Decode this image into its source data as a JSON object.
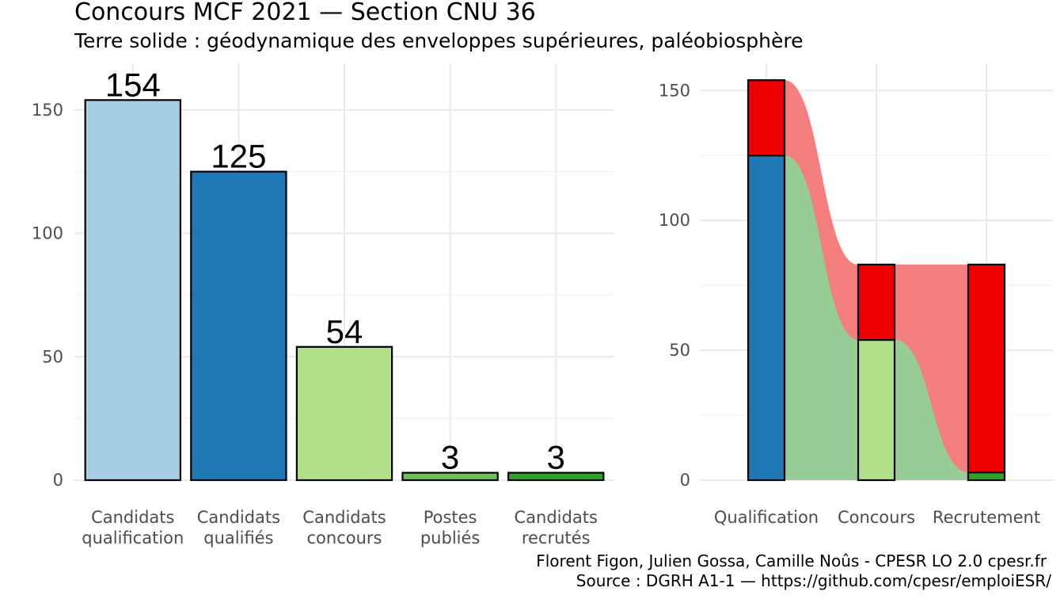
{
  "title": "Concours MCF  2021  —  Section CNU 36",
  "subtitle": "Terre solide : géodynamique des enveloppes supérieures, paléobiosphère",
  "caption": {
    "line1": "Florent Figon, Julien Gossa, Camille Noûs - CPESR LO 2.0 cpesr.fr",
    "line2": "Source : DGRH A1-1 — https://github.com/cpesr/emploiESR/"
  },
  "chart_data": [
    {
      "type": "bar",
      "categories": [
        [
          "Candidats",
          "qualification"
        ],
        [
          "Candidats",
          "qualifiés"
        ],
        [
          "Candidats",
          "concours"
        ],
        [
          "Postes",
          "publiés"
        ],
        [
          "Candidats",
          "recrutés"
        ]
      ],
      "values": [
        154,
        125,
        54,
        3,
        3
      ],
      "data_labels": [
        "154",
        "125",
        "54",
        "3",
        "3"
      ],
      "colors": [
        "#a6cee3",
        "#1f78b4",
        "#b2df8a",
        "#6fbf5a",
        "#33a02c"
      ],
      "ylim": [
        0,
        160
      ],
      "yticks": [
        0,
        50,
        100,
        150
      ],
      "yticklabels": [
        "0",
        "50",
        "100",
        "150"
      ],
      "grid": true
    },
    {
      "type": "bar",
      "stacked": true,
      "categories": [
        "Qualification",
        "Concours",
        "Recrutement"
      ],
      "series": [
        {
          "values": [
            125,
            54,
            3
          ],
          "colors": [
            "#1f78b4",
            "#b2df8a",
            "#33a02c"
          ]
        },
        {
          "values": [
            29,
            29,
            80
          ],
          "colors": [
            "#ee0000",
            "#ee0000",
            "#ee0000"
          ]
        }
      ],
      "flows": [
        {
          "color": "#f47f7f",
          "bottom": [
            125,
            54,
            3
          ],
          "top": [
            154,
            83,
            83
          ]
        },
        {
          "color": "#97cd94",
          "bottom": [
            0,
            0,
            0
          ],
          "top": [
            125,
            54,
            3
          ]
        }
      ],
      "ylim": [
        0,
        160
      ],
      "yticks": [
        0,
        50,
        100,
        150
      ],
      "yticklabels": [
        "0",
        "50",
        "100",
        "150"
      ],
      "grid": true
    }
  ]
}
